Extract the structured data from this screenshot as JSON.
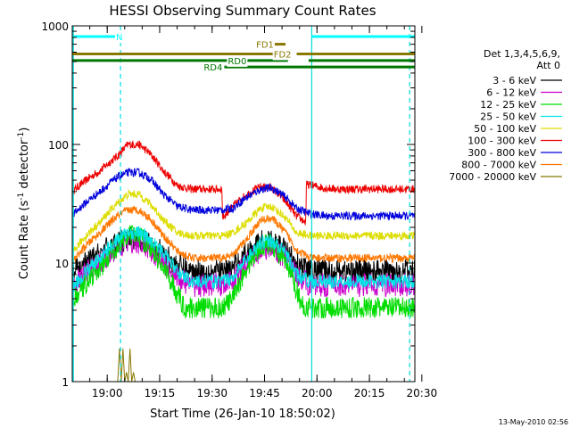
{
  "chart_data": {
    "type": "line",
    "title": "HESSI Observing Summary Count Rates",
    "xlabel": "Start Time (26-Jan-10 18:50:02)",
    "ylabel": "Count Rate (s",
    "ylabel_sup1": "-1",
    "ylabel_mid": " detector",
    "ylabel_sup2": "-1",
    "ylabel_end": ")",
    "yscale": "log",
    "x_unit": "minutes since 18:50:02",
    "xlim": [
      0,
      98
    ],
    "ylim": [
      1,
      1000
    ],
    "x_ticks": [
      {
        "label": "19:00",
        "value": 10
      },
      {
        "label": "19:15",
        "value": 25
      },
      {
        "label": "19:30",
        "value": 40
      },
      {
        "label": "19:45",
        "value": 55
      },
      {
        "label": "20:00",
        "value": 70
      },
      {
        "label": "20:15",
        "value": 85
      },
      {
        "label": "20:30",
        "value": 100
      }
    ],
    "y_ticks": [
      {
        "label": "1",
        "value": 1
      },
      {
        "label": "10",
        "value": 10
      },
      {
        "label": "100",
        "value": 100
      },
      {
        "label": "1000",
        "value": 1000
      }
    ],
    "legend_header": [
      "Det 1,3,4,5,6,9,",
      "Att 0"
    ],
    "legend_position": "right",
    "series": [
      {
        "name": "3 - 6 keV",
        "color": "#000000",
        "noise": 0.1,
        "x": [
          0,
          8,
          13,
          16,
          19,
          22,
          26,
          30,
          34,
          38,
          43,
          46,
          50,
          54,
          57,
          61,
          64,
          68,
          72,
          76,
          80,
          85,
          90,
          98
        ],
        "y": [
          8,
          12,
          15,
          16,
          16,
          15,
          12,
          9.5,
          8.5,
          8.5,
          8.5,
          9,
          12,
          15,
          15,
          13,
          10,
          8.5,
          8.5,
          8.5,
          8.5,
          8.5,
          8.5,
          8.5
        ]
      },
      {
        "name": "6 - 12 keV",
        "color": "#cc00cc",
        "noise": 0.1,
        "x": [
          0,
          8,
          13,
          16,
          19,
          22,
          26,
          30,
          34,
          38,
          43,
          46,
          50,
          54,
          57,
          61,
          64,
          68,
          72,
          76,
          80,
          85,
          90,
          98
        ],
        "y": [
          6.5,
          10,
          13,
          15,
          15,
          13,
          10,
          7.5,
          6.5,
          6.5,
          6.5,
          7,
          10,
          13,
          13.5,
          11,
          8,
          6.5,
          6.5,
          6.5,
          6.5,
          6.5,
          6.5,
          6.5
        ]
      },
      {
        "name": "12 - 25 keV",
        "color": "#00dd00",
        "noise": 0.09,
        "x": [
          0,
          8,
          13,
          16,
          19,
          22,
          26,
          30,
          32,
          38,
          43,
          46,
          50,
          54,
          57,
          61,
          64,
          66,
          72,
          76,
          80,
          85,
          90,
          98
        ],
        "y": [
          4.5,
          9,
          14,
          17,
          17,
          14,
          9,
          5.5,
          4.2,
          4.2,
          4.2,
          5,
          9,
          14,
          14.5,
          10,
          6,
          4.2,
          4.2,
          4.2,
          4.2,
          4.2,
          4.2,
          4.2
        ]
      },
      {
        "name": "25 - 50 keV",
        "color": "#00e5e5",
        "noise": 0.06,
        "x": [
          0,
          8,
          13,
          16,
          19,
          22,
          26,
          30,
          34,
          38,
          43,
          46,
          50,
          54,
          57,
          61,
          64,
          68,
          72,
          76,
          80,
          85,
          90,
          98
        ],
        "y": [
          6,
          11,
          16,
          18,
          18,
          16,
          12,
          8.5,
          7,
          7,
          7,
          7.5,
          11,
          15,
          15.5,
          12,
          8,
          7,
          7,
          7,
          7,
          7,
          7,
          7
        ]
      },
      {
        "name": "50 - 100 keV",
        "color": "#dddd00",
        "noise": 0.035,
        "x": [
          0,
          8,
          13,
          16,
          19,
          22,
          26,
          30,
          34,
          38,
          43,
          46,
          50,
          54,
          57,
          61,
          64,
          68,
          72,
          76,
          80,
          85,
          90,
          98
        ],
        "y": [
          12,
          22,
          32,
          38,
          38,
          32,
          23,
          18,
          17,
          17,
          17,
          18,
          22,
          29,
          30,
          24,
          18,
          17,
          17,
          17,
          17,
          17,
          17,
          17
        ]
      },
      {
        "name": "100 - 300 keV",
        "color": "#ee0000",
        "noise": 0.035,
        "x": [
          0,
          8,
          13,
          16,
          19,
          22,
          26,
          30,
          34,
          38,
          42.8,
          43,
          46,
          50,
          54,
          57,
          61,
          64,
          66.8,
          67,
          72,
          76,
          80,
          85,
          90,
          98
        ],
        "y": [
          40,
          60,
          80,
          100,
          100,
          85,
          60,
          45,
          42,
          42,
          42,
          24,
          30,
          38,
          44,
          43,
          33,
          25,
          22,
          46,
          43,
          42,
          42,
          42,
          42,
          42
        ]
      },
      {
        "name": "300 - 800 keV",
        "color": "#0000dd",
        "noise": 0.035,
        "x": [
          0,
          8,
          13,
          16,
          19,
          22,
          26,
          30,
          34,
          38,
          43,
          46,
          50,
          54,
          57,
          61,
          64,
          68,
          72,
          76,
          80,
          85,
          90,
          98
        ],
        "y": [
          25,
          40,
          53,
          58,
          58,
          52,
          38,
          30,
          28,
          28,
          28,
          29,
          36,
          42,
          43,
          36,
          29,
          26,
          25,
          25,
          25,
          25,
          25,
          25
        ]
      },
      {
        "name": "800 - 7000 keV",
        "color": "#ff7700",
        "noise": 0.035,
        "x": [
          0,
          8,
          13,
          16,
          19,
          22,
          26,
          30,
          34,
          38,
          43,
          46,
          50,
          54,
          57,
          61,
          64,
          68,
          72,
          76,
          80,
          85,
          90,
          98
        ],
        "y": [
          10,
          18,
          25,
          28,
          28,
          24,
          17,
          12.5,
          11,
          11,
          11,
          11.5,
          16,
          23,
          24,
          18,
          13,
          11,
          11,
          11,
          11,
          11,
          11,
          11
        ]
      },
      {
        "name": "7000 - 20000 keV",
        "color": "#887700",
        "noise": 0,
        "spikes": true,
        "x": [
          0,
          10,
          13,
          13.5,
          14,
          14.5,
          15,
          15.5,
          16,
          16.5,
          17,
          17.5,
          18,
          98
        ],
        "y": [
          1,
          1,
          1,
          1.9,
          1,
          1.9,
          1,
          1.2,
          1,
          1.9,
          1,
          1.2,
          1,
          1
        ]
      }
    ],
    "events": [
      {
        "label": "N",
        "start": 0,
        "end": 98,
        "color": "#00ffff",
        "level": 812,
        "label_at": 12.5
      },
      {
        "label": "FD1",
        "start": 57.3,
        "end": 61,
        "color": "#887700",
        "level": 700,
        "label_at": 52.6
      },
      {
        "label": "FD2",
        "start": 0,
        "end": 98,
        "color": "#887700",
        "level": 580,
        "label_at": 57.6
      },
      {
        "label": "RD0",
        "start": 0,
        "end": 98,
        "color": "#007700",
        "level": 510,
        "label_at": 44.5
      },
      {
        "label": "RD4",
        "start": 43.5,
        "end": 98,
        "color": "#007700",
        "level": 450,
        "label_at": 37.6
      }
    ],
    "vlines": [
      {
        "x": 0.3,
        "color": "#00dddd",
        "style": "solid"
      },
      {
        "x": 13.8,
        "color": "#00dddd",
        "style": "dashed"
      },
      {
        "x": 68.5,
        "color": "#00dddd",
        "style": "solid"
      },
      {
        "x": 96.5,
        "color": "#00dddd",
        "style": "dashed"
      }
    ],
    "gaps": [
      {
        "series_band": "N",
        "from": 13.8,
        "to": 68.5
      },
      {
        "series_band": "FD2",
        "from": 61.7,
        "to": 64.2
      },
      {
        "series_band": "RD0",
        "from": 61.7,
        "to": 67.6
      }
    ],
    "footer": "13-May-2010 02:56"
  }
}
